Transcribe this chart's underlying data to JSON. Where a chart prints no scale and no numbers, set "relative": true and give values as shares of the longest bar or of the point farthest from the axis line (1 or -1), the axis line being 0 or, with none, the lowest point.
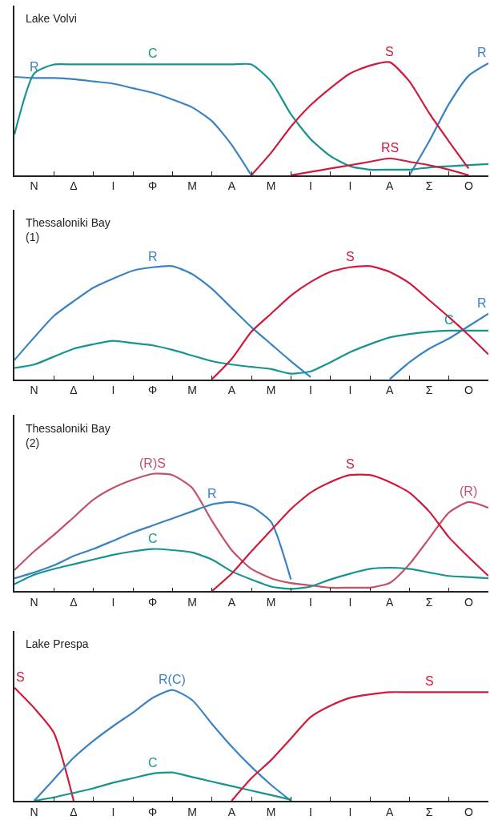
{
  "chart_data": [
    {
      "type": "line",
      "title": "Lake Volvi",
      "relative": true,
      "legend": false,
      "marker": "none",
      "line_style": "solid",
      "tick_labels": "x",
      "categories": [
        null,
        "Ν",
        null,
        "Δ",
        null,
        "Ι",
        null,
        "Φ",
        null,
        "Μ",
        null,
        "Α",
        null,
        "Μ",
        null,
        "Ι",
        null,
        "Ι",
        null,
        "Α",
        null,
        "Σ",
        null,
        "Ο",
        null
      ],
      "series": [
        {
          "name": "R",
          "color": "#3a82c4",
          "values": [
            0.87,
            0.86,
            0.86,
            0.85,
            0.83,
            0.81,
            0.77,
            0.73,
            0.67,
            0.6,
            0.48,
            0.27,
            0,
            null,
            null,
            null,
            null,
            null,
            null,
            null,
            null,
            null,
            null,
            null,
            null
          ]
        },
        {
          "name": "R",
          "color": "#3a82c4",
          "values": [
            null,
            null,
            null,
            null,
            null,
            null,
            null,
            null,
            null,
            null,
            null,
            null,
            null,
            null,
            null,
            null,
            null,
            null,
            null,
            null,
            0,
            0.3,
            0.63,
            0.88,
            0.99
          ]
        },
        {
          "name": "C",
          "color": "#16948f",
          "values": [
            0.36,
            0.9,
            0.98,
            0.98,
            0.98,
            0.98,
            0.98,
            0.98,
            0.98,
            0.98,
            0.98,
            0.98,
            0.98,
            0.83,
            0.54,
            0.32,
            0.17,
            0.08,
            0.05,
            0.05,
            0.05,
            0.07,
            0.08,
            0.09,
            0.1
          ]
        },
        {
          "name": "S",
          "color": "#cf1a3c",
          "values": [
            null,
            null,
            null,
            null,
            null,
            null,
            null,
            null,
            null,
            null,
            null,
            null,
            0,
            0.2,
            0.43,
            0.62,
            0.77,
            0.9,
            0.97,
            1.0,
            0.83,
            0.55,
            0.3,
            0.06,
            null
          ]
        },
        {
          "name": "RS",
          "color": "#cf1a3c",
          "values": [
            null,
            null,
            null,
            null,
            null,
            null,
            null,
            null,
            null,
            null,
            null,
            null,
            null,
            null,
            0,
            0.03,
            0.06,
            0.09,
            0.12,
            0.15,
            0.12,
            0.09,
            0.05,
            0,
            null
          ]
        }
      ]
    },
    {
      "type": "line",
      "title": "Thessaloniki Bay\n(1)",
      "relative": true,
      "legend": false,
      "marker": "none",
      "line_style": "solid",
      "tick_labels": "x",
      "categories": [
        null,
        "Ν",
        null,
        "Δ",
        null,
        "Ι",
        null,
        "Φ",
        null,
        "Μ",
        null,
        "Α",
        null,
        "Μ",
        null,
        "Ι",
        null,
        "Ι",
        null,
        "Α",
        null,
        "Σ",
        null,
        "Ο",
        null
      ],
      "series": [
        {
          "name": "R",
          "color": "#3a82c4",
          "values": [
            0.17,
            0.37,
            0.56,
            0.69,
            0.81,
            0.89,
            0.96,
            0.99,
            1.0,
            0.93,
            0.8,
            0.63,
            0.46,
            0.31,
            0.16,
            0.02,
            null,
            null,
            null,
            null,
            null,
            null,
            null,
            null,
            null
          ]
        },
        {
          "name": "R",
          "color": "#3a82c4",
          "values": [
            null,
            null,
            null,
            null,
            null,
            null,
            null,
            null,
            null,
            null,
            null,
            null,
            null,
            null,
            null,
            null,
            null,
            null,
            null,
            0,
            0.15,
            0.27,
            0.36,
            0.47,
            0.58
          ]
        },
        {
          "name": "C",
          "color": "#16948f",
          "values": [
            0.1,
            0.13,
            0.2,
            0.27,
            0.31,
            0.34,
            0.32,
            0.3,
            0.26,
            0.21,
            0.16,
            0.13,
            0.11,
            0.09,
            0.05,
            0.07,
            0.15,
            0.24,
            0.31,
            0.37,
            0.4,
            0.42,
            0.43,
            0.43,
            0.43
          ]
        },
        {
          "name": "S",
          "color": "#cf1a3c",
          "values": [
            null,
            null,
            null,
            null,
            null,
            null,
            null,
            null,
            null,
            null,
            0,
            0.18,
            0.42,
            0.58,
            0.74,
            0.86,
            0.95,
            0.99,
            1.0,
            0.95,
            0.85,
            0.7,
            0.55,
            0.39,
            0.22
          ]
        }
      ]
    },
    {
      "type": "line",
      "title": "Thessaloniki Bay\n(2)",
      "relative": true,
      "legend": false,
      "marker": "none",
      "line_style": "solid",
      "tick_labels": "x",
      "categories": [
        null,
        "Ν",
        null,
        "Δ",
        null,
        "Ι",
        null,
        "Φ",
        null,
        "Μ",
        null,
        "Α",
        null,
        "Μ",
        null,
        "Ι",
        null,
        "Ι",
        null,
        "Α",
        null,
        "Σ",
        null,
        "Ο",
        null
      ],
      "series": [
        {
          "name": "(R)S",
          "color": "#c4506a",
          "values": [
            0.18,
            0.34,
            0.48,
            0.63,
            0.78,
            0.88,
            0.95,
            1.0,
            0.99,
            0.88,
            0.6,
            0.35,
            0.19,
            0.11,
            0.07,
            0.05,
            0.03,
            0.03,
            0.03,
            null,
            null,
            null,
            null,
            null,
            null
          ]
        },
        {
          "name": "(R)",
          "color": "#c4506a",
          "values": [
            null,
            null,
            null,
            null,
            null,
            null,
            null,
            null,
            null,
            null,
            null,
            null,
            null,
            null,
            null,
            null,
            null,
            null,
            0.03,
            0.07,
            0.23,
            0.45,
            0.67,
            0.76,
            0.71
          ]
        },
        {
          "name": "R",
          "color": "#3a82c4",
          "values": [
            0.11,
            0.16,
            0.22,
            0.3,
            0.36,
            0.43,
            0.5,
            0.56,
            0.62,
            0.68,
            0.74,
            0.76,
            0.72,
            0.59,
            0.1,
            null,
            null,
            null,
            null,
            null,
            null,
            null,
            null,
            null,
            null
          ]
        },
        {
          "name": "C",
          "color": "#16948f",
          "values": [
            0.06,
            0.14,
            0.19,
            0.23,
            0.27,
            0.31,
            0.34,
            0.36,
            0.35,
            0.33,
            0.27,
            0.17,
            0.1,
            0.04,
            0.02,
            0.04,
            0.1,
            0.15,
            0.19,
            0.2,
            0.19,
            0.16,
            0.13,
            0.12,
            0.11
          ]
        },
        {
          "name": "S",
          "color": "#cf1a3c",
          "values": [
            null,
            null,
            null,
            null,
            null,
            null,
            null,
            null,
            null,
            null,
            0,
            0.15,
            0.34,
            0.52,
            0.7,
            0.84,
            0.93,
            0.99,
            0.99,
            0.93,
            0.84,
            0.68,
            0.46,
            0.29,
            0.13
          ]
        }
      ]
    },
    {
      "type": "line",
      "title": "Lake Prespa",
      "relative": true,
      "legend": false,
      "marker": "none",
      "line_style": "solid",
      "tick_labels": "x",
      "categories": [
        null,
        "Ν",
        null,
        "Δ",
        null,
        "Ι",
        null,
        "Φ",
        null,
        "Μ",
        null,
        "Α",
        null,
        "Μ",
        null,
        "Ι",
        null,
        "Ι",
        null,
        "Α",
        null,
        "Σ",
        null,
        "Ο",
        null
      ],
      "series": [
        {
          "name": "S",
          "color": "#cf1a3c",
          "values": [
            1.0,
            0.82,
            0.6,
            0,
            null,
            null,
            null,
            null,
            null,
            null,
            null,
            null,
            null,
            null,
            null,
            null,
            null,
            null,
            null,
            null,
            null,
            null,
            null,
            null,
            null
          ]
        },
        {
          "name": "R(C)",
          "color": "#3a82c4",
          "values": [
            null,
            0,
            0.19,
            0.38,
            0.53,
            0.66,
            0.78,
            0.91,
            0.98,
            0.89,
            0.68,
            0.48,
            0.3,
            0.14,
            0,
            null,
            null,
            null,
            null,
            null,
            null,
            null,
            null,
            null,
            null
          ]
        },
        {
          "name": "C",
          "color": "#16948f",
          "values": [
            null,
            0,
            0.03,
            0.07,
            0.11,
            0.16,
            0.2,
            0.24,
            0.25,
            0.21,
            0.17,
            0.13,
            0.09,
            0.05,
            0.01,
            null,
            null,
            null,
            null,
            null,
            null,
            null,
            null,
            null,
            null
          ]
        },
        {
          "name": "S",
          "color": "#cf1a3c",
          "values": [
            null,
            null,
            null,
            null,
            null,
            null,
            null,
            null,
            null,
            null,
            null,
            0,
            0.2,
            0.36,
            0.55,
            0.74,
            0.84,
            0.91,
            0.94,
            0.96,
            0.96,
            0.96,
            0.96,
            0.96,
            0.96
          ]
        }
      ]
    }
  ]
}
